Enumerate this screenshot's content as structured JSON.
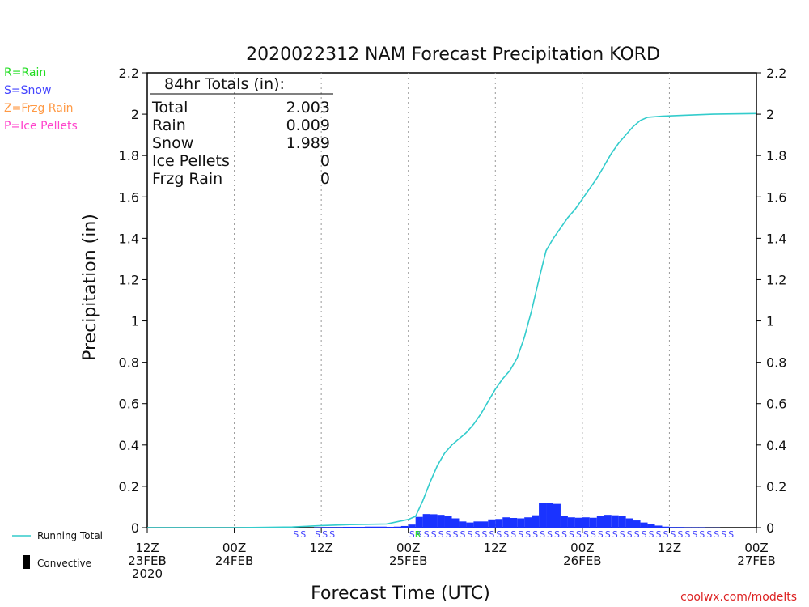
{
  "chart_data": {
    "type": "bar",
    "title": "2020022312 NAM Forecast Precipitation KORD",
    "xlabel": "Forecast Time (UTC)",
    "ylabel": "Precipitation (in)",
    "ylim": [
      0,
      2.2
    ],
    "xlim_hours": [
      0,
      84
    ],
    "yticks": [
      "0",
      "0.2",
      "0.4",
      "0.6",
      "0.8",
      "1",
      "1.2",
      "1.4",
      "1.6",
      "1.8",
      "2",
      "2.2"
    ],
    "xticks": [
      {
        "hour": 0,
        "lines": [
          "12Z",
          "23FEB",
          "2020"
        ]
      },
      {
        "hour": 12,
        "lines": [
          "00Z",
          "24FEB"
        ]
      },
      {
        "hour": 24,
        "lines": [
          "12Z"
        ]
      },
      {
        "hour": 36,
        "lines": [
          "00Z",
          "25FEB"
        ]
      },
      {
        "hour": 48,
        "lines": [
          "12Z"
        ]
      },
      {
        "hour": 60,
        "lines": [
          "00Z",
          "26FEB"
        ]
      },
      {
        "hour": 72,
        "lines": [
          "12Z"
        ]
      },
      {
        "hour": 84,
        "lines": [
          "00Z",
          "27FEB"
        ]
      }
    ],
    "grid": "vertical dotted at 12h intervals",
    "legend": {
      "type_key": [
        {
          "label": "R=Rain",
          "color": "#22dd22"
        },
        {
          "label": "S=Snow",
          "color": "#4444ff"
        },
        {
          "label": "Z=Frzg Rain",
          "color": "#ff9944"
        },
        {
          "label": "P=Ice Pellets",
          "color": "#ff44cc"
        }
      ],
      "running_total": "Running Total",
      "convective": "Convective"
    },
    "totals_box": {
      "title": "84hr Totals (in):",
      "rows": [
        {
          "label": "Total",
          "value": "2.003"
        },
        {
          "label": "Rain",
          "value": "0.009"
        },
        {
          "label": "Snow",
          "value": "1.989"
        },
        {
          "label": "Ice Pellets",
          "value": "0"
        },
        {
          "label": "Frzg Rain",
          "value": "0"
        }
      ]
    },
    "series": [
      {
        "name": "Running Total",
        "type": "line",
        "color": "#33cccc",
        "points": [
          [
            0,
            0
          ],
          [
            12,
            0
          ],
          [
            20,
            0.003
          ],
          [
            24,
            0.01
          ],
          [
            28,
            0.015
          ],
          [
            33,
            0.018
          ],
          [
            36,
            0.04
          ],
          [
            37,
            0.055
          ],
          [
            38,
            0.13
          ],
          [
            39,
            0.22
          ],
          [
            40,
            0.3
          ],
          [
            41,
            0.36
          ],
          [
            42,
            0.4
          ],
          [
            43,
            0.43
          ],
          [
            44,
            0.46
          ],
          [
            45,
            0.5
          ],
          [
            46,
            0.55
          ],
          [
            47,
            0.61
          ],
          [
            48,
            0.67
          ],
          [
            49,
            0.72
          ],
          [
            50,
            0.76
          ],
          [
            51,
            0.82
          ],
          [
            52,
            0.92
          ],
          [
            53,
            1.05
          ],
          [
            54,
            1.2
          ],
          [
            55,
            1.34
          ],
          [
            56,
            1.4
          ],
          [
            57,
            1.45
          ],
          [
            58,
            1.5
          ],
          [
            59,
            1.54
          ],
          [
            60,
            1.59
          ],
          [
            61,
            1.64
          ],
          [
            62,
            1.69
          ],
          [
            63,
            1.75
          ],
          [
            64,
            1.81
          ],
          [
            65,
            1.86
          ],
          [
            66,
            1.9
          ],
          [
            67,
            1.94
          ],
          [
            68,
            1.97
          ],
          [
            69,
            1.985
          ],
          [
            71,
            1.99
          ],
          [
            74,
            1.995
          ],
          [
            78,
            2.0
          ],
          [
            84,
            2.003
          ]
        ]
      },
      {
        "name": "Hourly precipitation",
        "type": "bar",
        "color": "#1a33ff",
        "hours": [
          23,
          24,
          25,
          26,
          27,
          28,
          29,
          30,
          31,
          32,
          33,
          34,
          35,
          36,
          37,
          38,
          39,
          40,
          41,
          42,
          43,
          44,
          45,
          46,
          47,
          48,
          49,
          50,
          51,
          52,
          53,
          54,
          55,
          56,
          57,
          58,
          59,
          60,
          61,
          62,
          63,
          64,
          65,
          66,
          67,
          68,
          69,
          70,
          71,
          72,
          73,
          74,
          75,
          76,
          77,
          78
        ],
        "values": [
          0.002,
          0.003,
          0.003,
          0.003,
          0.004,
          0.004,
          0.004,
          0.005,
          0.005,
          0.005,
          0.004,
          0.005,
          0.008,
          0.015,
          0.052,
          0.066,
          0.065,
          0.062,
          0.055,
          0.045,
          0.03,
          0.025,
          0.03,
          0.03,
          0.04,
          0.042,
          0.05,
          0.047,
          0.045,
          0.05,
          0.06,
          0.12,
          0.118,
          0.115,
          0.055,
          0.05,
          0.048,
          0.05,
          0.048,
          0.055,
          0.062,
          0.06,
          0.055,
          0.045,
          0.035,
          0.025,
          0.018,
          0.01,
          0.005,
          0.003,
          0.003,
          0.002,
          0.002,
          0.002,
          0.001,
          0.001
        ]
      }
    ],
    "type_strip": {
      "rain_hours": [
        36
      ],
      "snow_hours": [
        20,
        21,
        23,
        24,
        25,
        36,
        37,
        38,
        39,
        40,
        41,
        42,
        43,
        44,
        45,
        46,
        47,
        48,
        49,
        50,
        51,
        52,
        53,
        54,
        55,
        56,
        57,
        58,
        59,
        60,
        61,
        62,
        63,
        64,
        65,
        66,
        67,
        68,
        69,
        70,
        71,
        72,
        73,
        74,
        75,
        76,
        77,
        78,
        79,
        80
      ]
    }
  },
  "footer": {
    "credit": "coolwx.com/modelts"
  }
}
